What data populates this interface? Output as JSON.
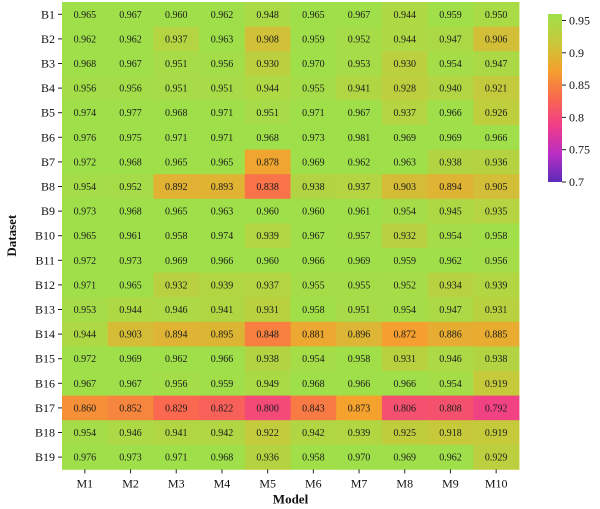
{
  "chart_data": {
    "type": "heatmap",
    "xlabel": "Model",
    "ylabel": "Dataset",
    "columns": [
      "M1",
      "M2",
      "M3",
      "M4",
      "M5",
      "M6",
      "M7",
      "M8",
      "M9",
      "M10"
    ],
    "rows": [
      "B1",
      "B2",
      "B3",
      "B4",
      "B5",
      "B6",
      "B7",
      "B8",
      "B9",
      "B10",
      "B11",
      "B12",
      "B13",
      "B14",
      "B15",
      "B16",
      "B17",
      "B18",
      "B19"
    ],
    "values": [
      [
        "0.965",
        "0.967",
        "0.960",
        "0.962",
        "0.948",
        "0.965",
        "0.967",
        "0.944",
        "0.959",
        "0.950"
      ],
      [
        "0.962",
        "0.962",
        "0.937",
        "0.963",
        "0.908",
        "0.959",
        "0.952",
        "0.944",
        "0.947",
        "0.906"
      ],
      [
        "0.968",
        "0.967",
        "0.951",
        "0.956",
        "0.930",
        "0.970",
        "0.953",
        "0.930",
        "0.954",
        "0.947"
      ],
      [
        "0.956",
        "0.956",
        "0.951",
        "0.951",
        "0.944",
        "0.955",
        "0.941",
        "0.928",
        "0.940",
        "0.921"
      ],
      [
        "0.974",
        "0.977",
        "0.968",
        "0.971",
        "0.951",
        "0.971",
        "0.967",
        "0.937",
        "0.966",
        "0.926"
      ],
      [
        "0.976",
        "0.975",
        "0.971",
        "0.971",
        "0.968",
        "0.973",
        "0.981",
        "0.969",
        "0.969",
        "0.966"
      ],
      [
        "0.972",
        "0.968",
        "0.965",
        "0.965",
        "0.878",
        "0.969",
        "0.962",
        "0.963",
        "0.938",
        "0.936"
      ],
      [
        "0.954",
        "0.952",
        "0.892",
        "0.893",
        "0.838",
        "0.938",
        "0.937",
        "0.903",
        "0.894",
        "0.905"
      ],
      [
        "0.973",
        "0.968",
        "0.965",
        "0.963",
        "0.960",
        "0.960",
        "0.961",
        "0.954",
        "0.945",
        "0.935"
      ],
      [
        "0.965",
        "0.961",
        "0.958",
        "0.974",
        "0.939",
        "0.967",
        "0.957",
        "0.932",
        "0.954",
        "0.958"
      ],
      [
        "0.972",
        "0.973",
        "0.969",
        "0.966",
        "0.960",
        "0.966",
        "0.969",
        "0.959",
        "0.962",
        "0.956"
      ],
      [
        "0.971",
        "0.965",
        "0.932",
        "0.939",
        "0.937",
        "0.955",
        "0.955",
        "0.952",
        "0.934",
        "0.939"
      ],
      [
        "0.953",
        "0.944",
        "0.946",
        "0.941",
        "0.931",
        "0.958",
        "0.951",
        "0.954",
        "0.947",
        "0.931"
      ],
      [
        "0.944",
        "0.903",
        "0.894",
        "0.895",
        "0.848",
        "0.881",
        "0.896",
        "0.872",
        "0.886",
        "0.885"
      ],
      [
        "0.972",
        "0.969",
        "0.962",
        "0.966",
        "0.938",
        "0.954",
        "0.958",
        "0.931",
        "0.946",
        "0.938"
      ],
      [
        "0.967",
        "0.967",
        "0.956",
        "0.959",
        "0.949",
        "0.968",
        "0.966",
        "0.966",
        "0.954",
        "0.919"
      ],
      [
        "0.860",
        "0.852",
        "0.829",
        "0.822",
        "0.800",
        "0.843",
        "0.873",
        "0.806",
        "0.808",
        "0.792"
      ],
      [
        "0.954",
        "0.946",
        "0.941",
        "0.942",
        "0.922",
        "0.942",
        "0.939",
        "0.925",
        "0.918",
        "0.919"
      ],
      [
        "0.976",
        "0.973",
        "0.971",
        "0.968",
        "0.936",
        "0.958",
        "0.970",
        "0.969",
        "0.962",
        "0.929"
      ]
    ],
    "colorbar": {
      "min": 0.7,
      "max": 0.96,
      "ticks": [
        "0.95",
        "0.9",
        "0.85",
        "0.8",
        "0.75",
        "0.7"
      ],
      "colors": [
        "#5b2bb8",
        "#b82ec4",
        "#f03c8a",
        "#f9694e",
        "#f4a12e",
        "#c7c93a",
        "#9fe04a"
      ]
    },
    "grid": false,
    "legend": "right"
  }
}
